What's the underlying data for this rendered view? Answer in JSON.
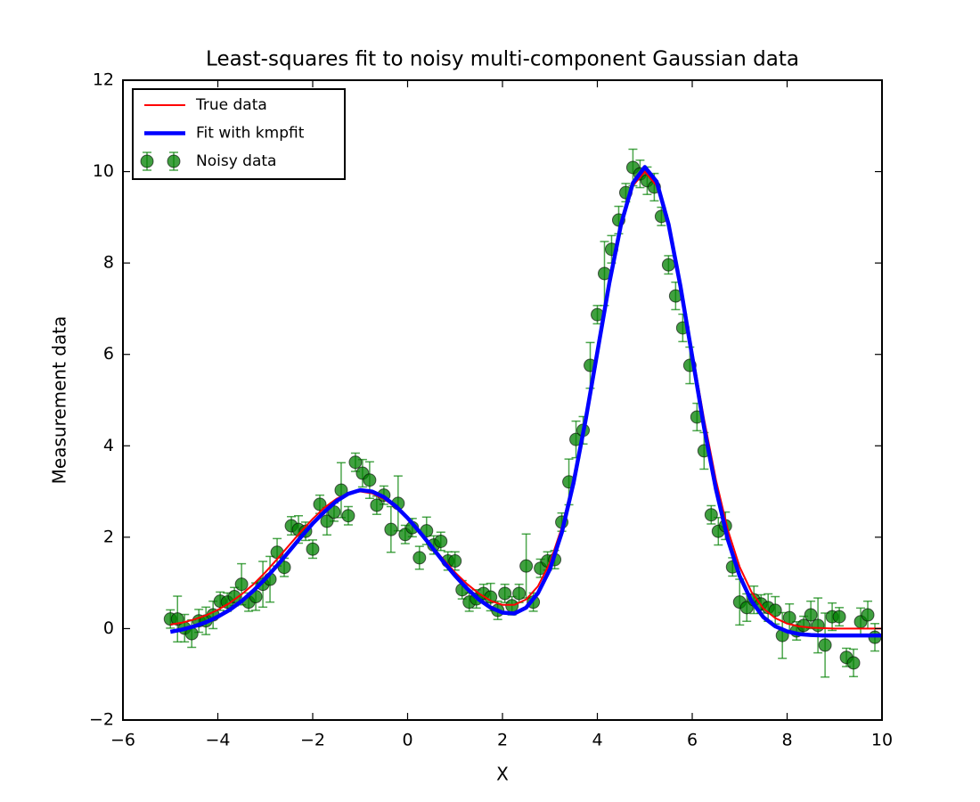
{
  "chart_data": {
    "type": "line",
    "title": "Least-squares fit to noisy multi-component Gaussian data",
    "xlabel": "X",
    "ylabel": "Measurement data",
    "xlim": [
      -6,
      10
    ],
    "ylim": [
      -2,
      12
    ],
    "xticks": [
      {
        "value": -6,
        "label": "−6"
      },
      {
        "value": -4,
        "label": "−4"
      },
      {
        "value": -2,
        "label": "−2"
      },
      0,
      2,
      4,
      6,
      8,
      10
    ],
    "yticks": [
      {
        "value": -2,
        "label": "−2"
      },
      0,
      2,
      4,
      6,
      8,
      10,
      12
    ],
    "legend": "upper left",
    "series": [
      {
        "name": "True data",
        "color": "#ff0000",
        "line_width": 2,
        "x": [
          -5,
          -4.75,
          -4.5,
          -4.25,
          -4,
          -3.75,
          -3.5,
          -3.25,
          -3,
          -2.75,
          -2.5,
          -2.25,
          -2,
          -1.75,
          -1.5,
          -1.25,
          -1,
          -0.75,
          -0.5,
          -0.25,
          0,
          0.25,
          0.5,
          0.75,
          1,
          1.25,
          1.5,
          1.75,
          2,
          2.25,
          2.5,
          2.75,
          3,
          3.25,
          3.5,
          3.75,
          4,
          4.25,
          4.5,
          4.75,
          5,
          5.25,
          5.5,
          5.75,
          6,
          6.25,
          6.5,
          6.75,
          7,
          7.25,
          7.5,
          7.75,
          8,
          8.25,
          8.5,
          8.75,
          9,
          9.25,
          9.5,
          9.75,
          10
        ],
        "values": [
          0.09,
          0.13,
          0.2,
          0.29,
          0.41,
          0.56,
          0.75,
          0.97,
          1.23,
          1.52,
          1.82,
          2.12,
          2.4,
          2.65,
          2.84,
          2.96,
          3.0,
          2.96,
          2.84,
          2.65,
          2.4,
          2.12,
          1.82,
          1.52,
          1.23,
          0.98,
          0.77,
          0.61,
          0.52,
          0.52,
          0.64,
          0.93,
          1.44,
          2.21,
          3.28,
          4.6,
          6.08,
          7.55,
          8.82,
          9.69,
          10,
          9.69,
          8.82,
          7.55,
          6.07,
          4.58,
          3.25,
          2.16,
          1.35,
          0.8,
          0.44,
          0.23,
          0.11,
          0.05,
          0.02,
          0.01,
          0,
          0,
          0,
          0,
          0
        ]
      },
      {
        "name": "Fit with kmpfit",
        "color": "#0000ff",
        "line_width": 4.5,
        "x": [
          -5,
          -4.75,
          -4.5,
          -4.25,
          -4,
          -3.75,
          -3.5,
          -3.25,
          -3,
          -2.75,
          -2.5,
          -2.25,
          -2,
          -1.75,
          -1.5,
          -1.25,
          -1,
          -0.75,
          -0.5,
          -0.25,
          0,
          0.25,
          0.5,
          0.75,
          1,
          1.25,
          1.5,
          1.75,
          2,
          2.25,
          2.5,
          2.75,
          3,
          3.25,
          3.5,
          3.75,
          4,
          4.25,
          4.5,
          4.75,
          5,
          5.25,
          5.5,
          5.75,
          6,
          6.25,
          6.5,
          6.75,
          7,
          7.25,
          7.5,
          7.75,
          8,
          8.25,
          8.5,
          8.75,
          9,
          9.25,
          9.5,
          9.75,
          10
        ],
        "values": [
          -0.07,
          -0.02,
          0.05,
          0.14,
          0.26,
          0.41,
          0.6,
          0.83,
          1.09,
          1.38,
          1.69,
          2.0,
          2.3,
          2.56,
          2.79,
          2.95,
          3.03,
          3.0,
          2.88,
          2.68,
          2.42,
          2.12,
          1.8,
          1.47,
          1.16,
          0.88,
          0.64,
          0.46,
          0.35,
          0.33,
          0.46,
          0.78,
          1.3,
          2.1,
          3.2,
          4.55,
          6.05,
          7.55,
          8.85,
          9.75,
          10.1,
          9.78,
          8.85,
          7.5,
          5.95,
          4.4,
          3.05,
          1.95,
          1.15,
          0.6,
          0.25,
          0.05,
          -0.06,
          -0.12,
          -0.14,
          -0.15,
          -0.15,
          -0.15,
          -0.15,
          -0.15,
          -0.15
        ]
      },
      {
        "name": "Noisy data",
        "color": "#008000",
        "marker": "o",
        "x": [
          -5,
          -4.85,
          -4.7,
          -4.55,
          -4.4,
          -4.25,
          -4.1,
          -3.95,
          -3.8,
          -3.65,
          -3.5,
          -3.35,
          -3.2,
          -3.05,
          -2.9,
          -2.75,
          -2.6,
          -2.45,
          -2.3,
          -2.15,
          -2,
          -1.85,
          -1.7,
          -1.55,
          -1.4,
          -1.25,
          -1.1,
          -0.95,
          -0.8,
          -0.65,
          -0.5,
          -0.35,
          -0.2,
          -0.05,
          0.1,
          0.25,
          0.4,
          0.55,
          0.7,
          0.85,
          1,
          1.15,
          1.3,
          1.45,
          1.6,
          1.75,
          1.9,
          2.05,
          2.2,
          2.35,
          2.5,
          2.65,
          2.8,
          2.95,
          3.1,
          3.25,
          3.4,
          3.55,
          3.7,
          3.85,
          4,
          4.15,
          4.3,
          4.45,
          4.6,
          4.75,
          4.9,
          5.05,
          5.2,
          5.35,
          5.5,
          5.65,
          5.8,
          5.95,
          6.1,
          6.25,
          6.4,
          6.55,
          6.7,
          6.85,
          7,
          7.15,
          7.3,
          7.45,
          7.6,
          7.75,
          7.9,
          8.05,
          8.2,
          8.35,
          8.5,
          8.65,
          8.8,
          8.95,
          9.1,
          9.25,
          9.4,
          9.55,
          9.7,
          9.85
        ],
        "values": [
          0.21,
          0.21,
          0.01,
          -0.11,
          0.17,
          0.17,
          0.3,
          0.6,
          0.58,
          0.7,
          0.97,
          0.58,
          0.7,
          0.97,
          1.08,
          1.67,
          1.34,
          2.25,
          2.17,
          2.13,
          1.74,
          2.72,
          2.35,
          2.55,
          3.03,
          2.47,
          3.64,
          3.4,
          3.25,
          2.7,
          2.92,
          2.17,
          2.74,
          2.06,
          2.21,
          1.55,
          2.14,
          1.83,
          1.91,
          1.48,
          1.48,
          0.85,
          0.58,
          0.65,
          0.77,
          0.69,
          0.4,
          0.77,
          0.5,
          0.77,
          1.37,
          0.58,
          1.32,
          1.48,
          1.51,
          2.33,
          3.21,
          4.14,
          4.34,
          5.76,
          6.87,
          7.77,
          8.3,
          8.94,
          9.54,
          10.09,
          9.95,
          9.8,
          9.66,
          9.02,
          7.96,
          7.28,
          6.58,
          5.76,
          4.63,
          3.89,
          2.49,
          2.13,
          2.25,
          1.35,
          0.58,
          0.46,
          0.63,
          0.54,
          0.46,
          0.4,
          -0.15,
          0.24,
          -0.05,
          0.07,
          0.3,
          0.07,
          -0.36,
          0.26,
          0.26,
          -0.63,
          -0.75,
          0.15,
          0.3,
          -0.19
        ],
        "errors": [
          0.2,
          0.5,
          0.3,
          0.3,
          0.25,
          0.3,
          0.3,
          0.2,
          0.2,
          0.2,
          0.45,
          0.2,
          0.3,
          0.5,
          0.5,
          0.3,
          0.2,
          0.2,
          0.3,
          0.2,
          0.2,
          0.2,
          0.3,
          0.2,
          0.6,
          0.2,
          0.2,
          0.3,
          0.4,
          0.2,
          0.2,
          0.5,
          0.6,
          0.2,
          0.2,
          0.25,
          0.3,
          0.2,
          0.2,
          0.2,
          0.2,
          0.2,
          0.2,
          0.2,
          0.2,
          0.3,
          0.2,
          0.2,
          0.2,
          0.2,
          0.7,
          0.2,
          0.2,
          0.2,
          0.2,
          0.2,
          0.5,
          0.4,
          0.3,
          0.5,
          0.2,
          0.7,
          0.3,
          0.3,
          0.2,
          0.4,
          0.3,
          0.3,
          0.3,
          0.2,
          0.2,
          0.3,
          0.3,
          0.4,
          0.3,
          0.4,
          0.2,
          0.3,
          0.3,
          0.2,
          0.5,
          0.3,
          0.3,
          0.2,
          0.3,
          0.3,
          0.5,
          0.3,
          0.2,
          0.2,
          0.3,
          0.6,
          0.7,
          0.3,
          0.2,
          0.2,
          0.3,
          0.3,
          0.3,
          0.3
        ]
      }
    ]
  }
}
